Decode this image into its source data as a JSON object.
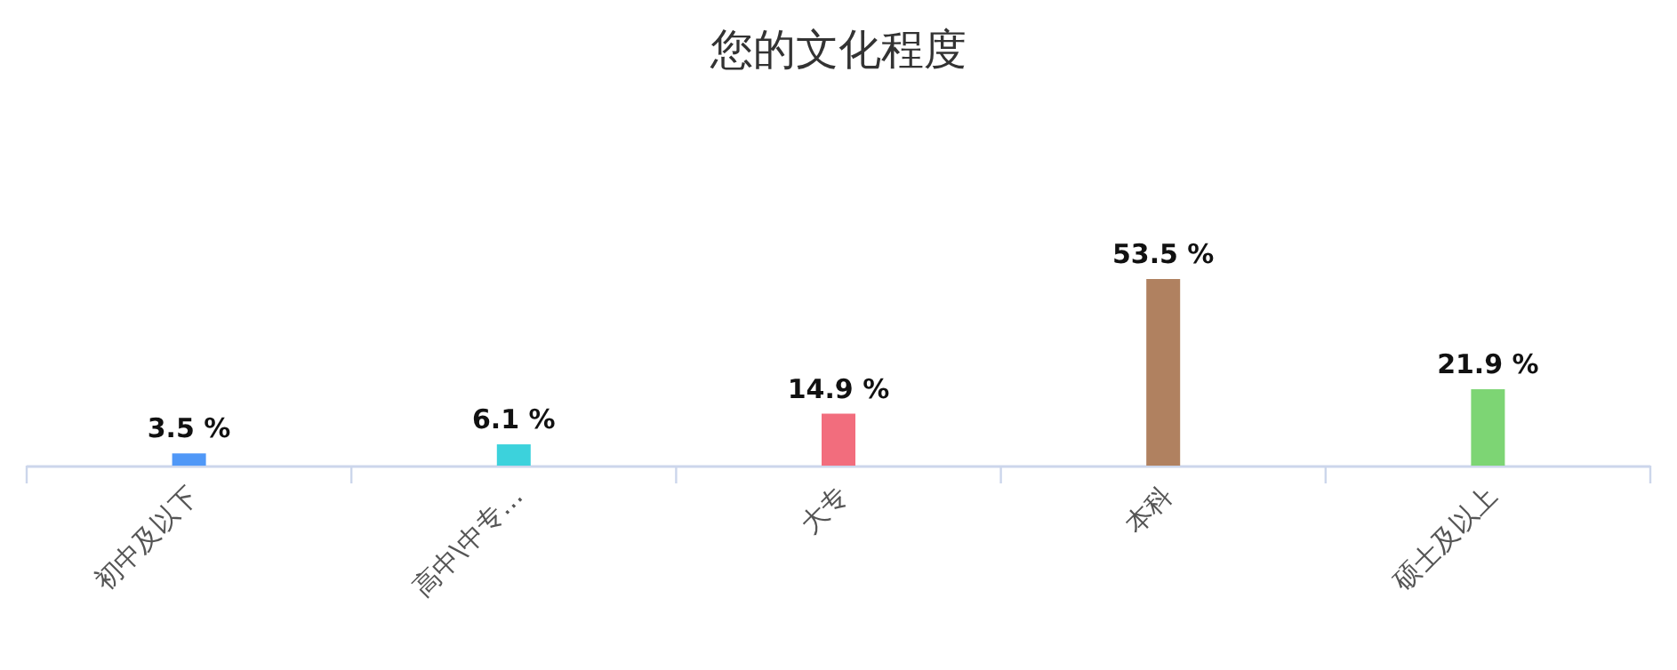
{
  "chart_data": {
    "type": "bar",
    "title": "您的文化程度",
    "categories": [
      "初中及以下",
      "高中\\中专…",
      "大专",
      "本科",
      "硕士及以上"
    ],
    "values": [
      3.5,
      6.1,
      14.9,
      53.5,
      21.9
    ],
    "value_labels": [
      "3.5 %",
      "6.1 %",
      "14.9 %",
      "53.5 %",
      "21.9 %"
    ],
    "colors": [
      "#5098f7",
      "#3cd2dc",
      "#f26d7d",
      "#b08160",
      "#7dd574"
    ]
  }
}
